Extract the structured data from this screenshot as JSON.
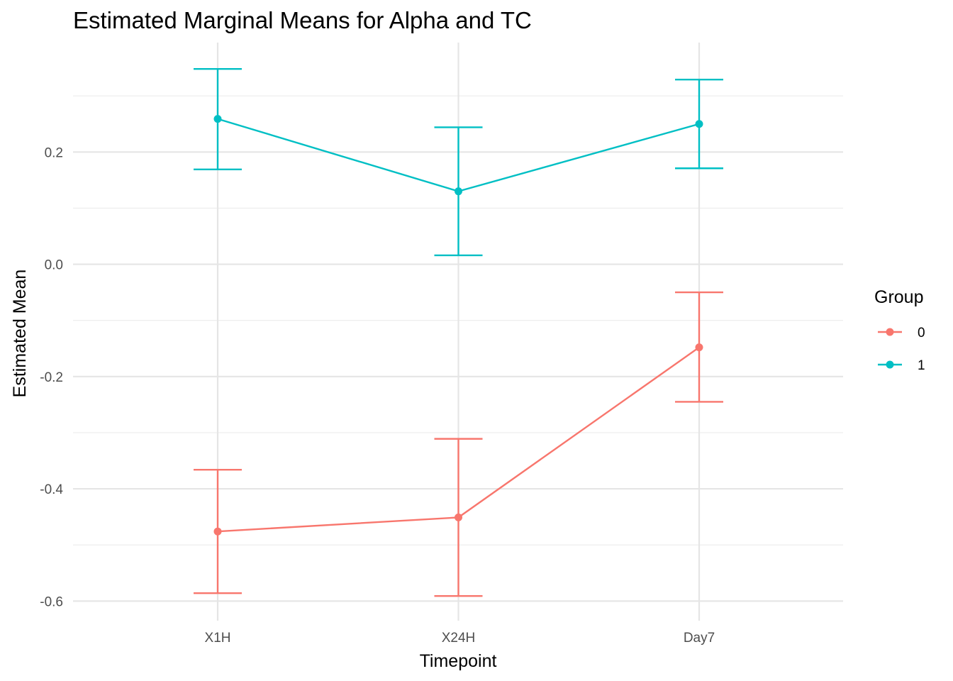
{
  "chart_data": {
    "type": "line",
    "title": "Estimated Marginal Means for Alpha and TC",
    "xlabel": "Timepoint",
    "ylabel": "Estimated Mean",
    "categories": [
      "X1H",
      "X24H",
      "Day7"
    ],
    "ylim": [
      -0.635,
      0.395
    ],
    "y_ticks": [
      0.2,
      0.0,
      -0.2,
      -0.4,
      -0.6
    ],
    "y_tick_labels": [
      "0.2",
      "0.0",
      "-0.2",
      "-0.4",
      "-0.6"
    ],
    "y_minor_ticks": [
      0.3,
      0.1,
      -0.1,
      -0.3,
      -0.5
    ],
    "grid": true,
    "legend": {
      "title": "Group",
      "placement": "right"
    },
    "series": [
      {
        "name": "0",
        "color": "#F8766D",
        "values": [
          -0.476,
          -0.451,
          -0.148
        ],
        "lower": [
          -0.586,
          -0.591,
          -0.245
        ],
        "upper": [
          -0.366,
          -0.311,
          -0.05
        ]
      },
      {
        "name": "1",
        "color": "#00BFC4",
        "values": [
          0.259,
          0.13,
          0.25
        ],
        "lower": [
          0.169,
          0.016,
          0.171
        ],
        "upper": [
          0.348,
          0.244,
          0.329
        ]
      }
    ]
  }
}
